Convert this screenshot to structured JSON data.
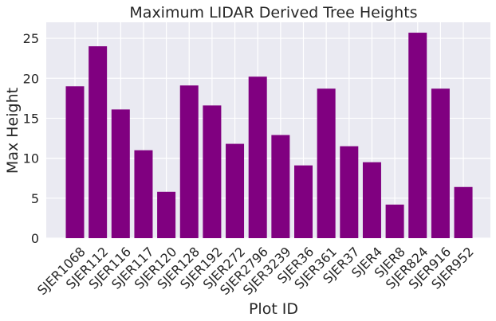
{
  "chart_data": {
    "type": "bar",
    "title": "Maximum LIDAR Derived Tree Heights",
    "xlabel": "Plot ID",
    "ylabel": "Max Height",
    "categories": [
      "SJER1068",
      "SJER112",
      "SJER116",
      "SJER117",
      "SJER120",
      "SJER128",
      "SJER192",
      "SJER272",
      "SJER2796",
      "SJER3239",
      "SJER36",
      "SJER361",
      "SJER37",
      "SJER4",
      "SJER8",
      "SJER824",
      "SJER916",
      "SJER952"
    ],
    "values": [
      19.0,
      24.0,
      16.1,
      11.0,
      5.8,
      19.1,
      16.6,
      11.8,
      20.2,
      12.9,
      9.1,
      18.7,
      11.5,
      9.5,
      4.2,
      25.7,
      18.7,
      6.4
    ],
    "ylim": [
      0,
      27
    ],
    "yticks": [
      0,
      5,
      10,
      15,
      20,
      25
    ],
    "grid": true,
    "bar_color": "#800080",
    "background_color": "#eaeaf2",
    "grid_color": "#ffffff"
  }
}
